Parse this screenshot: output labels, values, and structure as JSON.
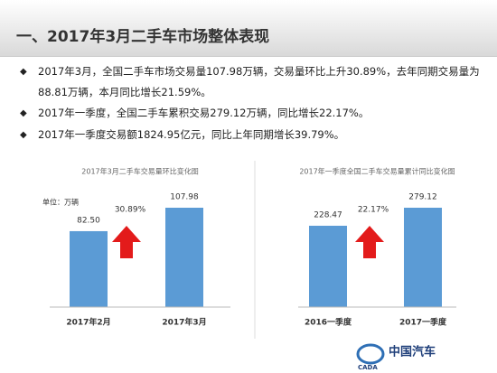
{
  "title": "一、2017年3月二手车市场整体表现",
  "bullets": [
    "2017年3月，全国二手车市场交易量107.98万辆，交易量环比上升30.89%，去年同期交易量为88.81万辆，本月同比增长21.59%。",
    "2017年一季度，全国二手车累积交易279.12万辆，同比增长22.17%。",
    "2017年一季度交易额1824.95亿元，同比上年同期增长39.79%。"
  ],
  "chart_data": [
    {
      "type": "bar",
      "title": "2017年3月二手车交易量环比变化图",
      "unit": "单位：万辆",
      "categories": [
        "2017年2月",
        "2017年3月"
      ],
      "values": [
        82.5,
        107.98
      ],
      "value_labels": [
        "82.50",
        "107.98"
      ],
      "annotation": "30.89%",
      "color": "#5b9bd5"
    },
    {
      "type": "bar",
      "title": "2017年一季度全国二手车交易量累计同比变化图",
      "categories": [
        "2016一季度",
        "2017一季度"
      ],
      "values": [
        228.47,
        279.12
      ],
      "value_labels": [
        "228.47",
        "279.12"
      ],
      "annotation": "22.17%",
      "color": "#5b9bd5"
    }
  ],
  "logo": {
    "name": "中国汽车",
    "abbr": "CADA"
  }
}
